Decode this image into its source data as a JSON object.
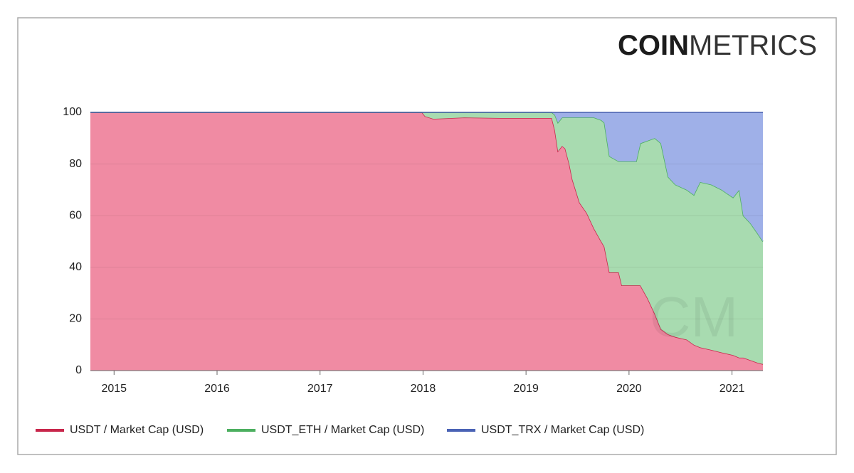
{
  "logo": {
    "bold": "COIN",
    "light": "METRICS"
  },
  "watermark": "CM",
  "chart_data": {
    "type": "stacked_area",
    "x": [
      2014.77,
      2017.99,
      2018.02,
      2018.1,
      2018.4,
      2018.75,
      2019.25,
      2019.28,
      2019.31,
      2019.35,
      2019.38,
      2019.42,
      2019.45,
      2019.52,
      2019.59,
      2019.66,
      2019.73,
      2019.76,
      2019.81,
      2019.9,
      2019.93,
      2020.07,
      2020.11,
      2020.18,
      2020.25,
      2020.31,
      2020.38,
      2020.45,
      2020.56,
      2020.63,
      2020.69,
      2020.8,
      2020.9,
      2021.01,
      2021.07,
      2021.11,
      2021.18,
      2021.25,
      2021.3
    ],
    "series": [
      {
        "name": "USDT / Market Cap (USD)",
        "color": "#c8264b",
        "fill": "#f08ba3",
        "values": [
          100,
          100,
          98.5,
          97.5,
          98,
          97.8,
          97.8,
          93,
          85,
          87,
          86,
          80,
          74,
          65,
          61,
          55,
          50,
          48,
          38,
          38,
          33,
          33,
          33,
          28,
          22,
          16,
          14,
          13,
          12,
          10,
          9,
          8,
          7,
          6,
          5,
          5,
          4,
          3,
          2.5
        ]
      },
      {
        "name": "USDT_ETH / Market Cap (USD)",
        "color": "#4caf60",
        "fill": "#a8dbb0",
        "values": [
          0,
          0,
          1.5,
          2.5,
          2,
          2.2,
          2.2,
          6,
          11,
          11,
          12,
          18,
          24,
          33,
          37,
          43,
          47,
          48,
          45,
          43,
          48,
          48,
          55,
          61,
          68,
          72,
          61,
          59,
          58,
          58,
          64,
          64,
          63,
          61,
          65,
          55,
          53,
          50,
          47.5
        ]
      },
      {
        "name": "USDT_TRX / Market Cap (USD)",
        "color": "#4a63b5",
        "fill": "#9fb0e8",
        "values": [
          0,
          0,
          0,
          0,
          0,
          0,
          0,
          1,
          4,
          2,
          2,
          2,
          2,
          2,
          2,
          2,
          3,
          4,
          17,
          19,
          19,
          19,
          12,
          11,
          10,
          12,
          25,
          28,
          30,
          32,
          27,
          28,
          30,
          33,
          30,
          40,
          43,
          47,
          50
        ]
      }
    ],
    "xlim": [
      2014.77,
      2021.3
    ],
    "xticks": [
      2015,
      2016,
      2017,
      2018,
      2019,
      2020,
      2021
    ],
    "ylim": [
      0,
      100
    ],
    "yticks": [
      0,
      20,
      40,
      60,
      80,
      100
    ],
    "grid": true,
    "legend": "bottom"
  }
}
